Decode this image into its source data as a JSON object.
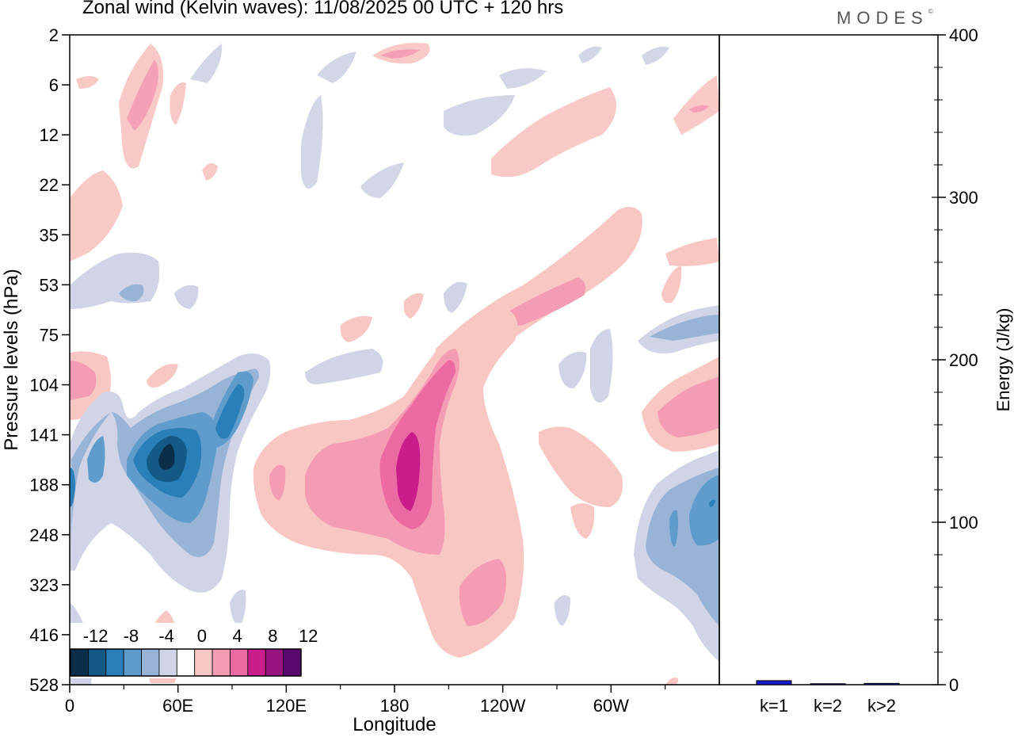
{
  "header": {
    "title": "Zonal wind (Kelvin waves):  11/08/2025  00 UTC  + 120 hrs",
    "brand": "MODES"
  },
  "chart_data": [
    {
      "type": "heatmap",
      "title": "Zonal wind (Kelvin waves):  11/08/2025  00 UTC  + 120 hrs",
      "xlabel": "Longitude",
      "ylabel": "Pressure levels (hPa)",
      "x_ticks": [
        "0",
        "60E",
        "120E",
        "180",
        "120W",
        "60W"
      ],
      "x_range_deg": [
        0,
        360
      ],
      "y_ticks": [
        "2",
        "6",
        "12",
        "22",
        "35",
        "53",
        "75",
        "104",
        "141",
        "188",
        "248",
        "323",
        "416",
        "528"
      ],
      "colorbar": {
        "tick_labels": [
          "-12",
          "-8",
          "-4",
          "0",
          "4",
          "8",
          "12"
        ],
        "levels": [
          -14,
          -12,
          -10,
          -8,
          -6,
          -4,
          -2,
          2,
          4,
          6,
          8,
          10,
          12,
          14
        ],
        "colors": [
          "#0b2f4a",
          "#145a86",
          "#2a7fb8",
          "#5f9ccb",
          "#97b3d6",
          "#d1d4e6",
          "#ffffff",
          "#f8c7c3",
          "#f49cb4",
          "#ec6aa2",
          "#c91d8b",
          "#99147e",
          "#5a0a6e"
        ]
      },
      "features": [
        {
          "sign": "negative",
          "peak": -14,
          "lon": 55,
          "hPa": 150
        },
        {
          "sign": "negative",
          "peak": -8,
          "lon": 85,
          "hPa": 120
        },
        {
          "sign": "negative",
          "peak": -8,
          "lon": 345,
          "hPa": 200
        },
        {
          "sign": "positive",
          "peak": 10,
          "lon": 185,
          "hPa": 150
        },
        {
          "sign": "positive",
          "peak": 6,
          "lon": 240,
          "hPa": 300
        },
        {
          "sign": "positive",
          "peak": 6,
          "lon": 340,
          "hPa": 120
        },
        {
          "sign": "positive",
          "peak": 6,
          "lon": 5,
          "hPa": 104
        }
      ]
    },
    {
      "type": "bar",
      "ylabel": "Energy (J/kg)",
      "categories": [
        "k=1",
        "k=2",
        "k>2"
      ],
      "values": [
        2.5,
        0.6,
        0.8
      ],
      "ylim": [
        0,
        400
      ],
      "y_ticks": [
        "0",
        "100",
        "200",
        "300",
        "400"
      ],
      "bar_color": "#1a1acc"
    }
  ]
}
